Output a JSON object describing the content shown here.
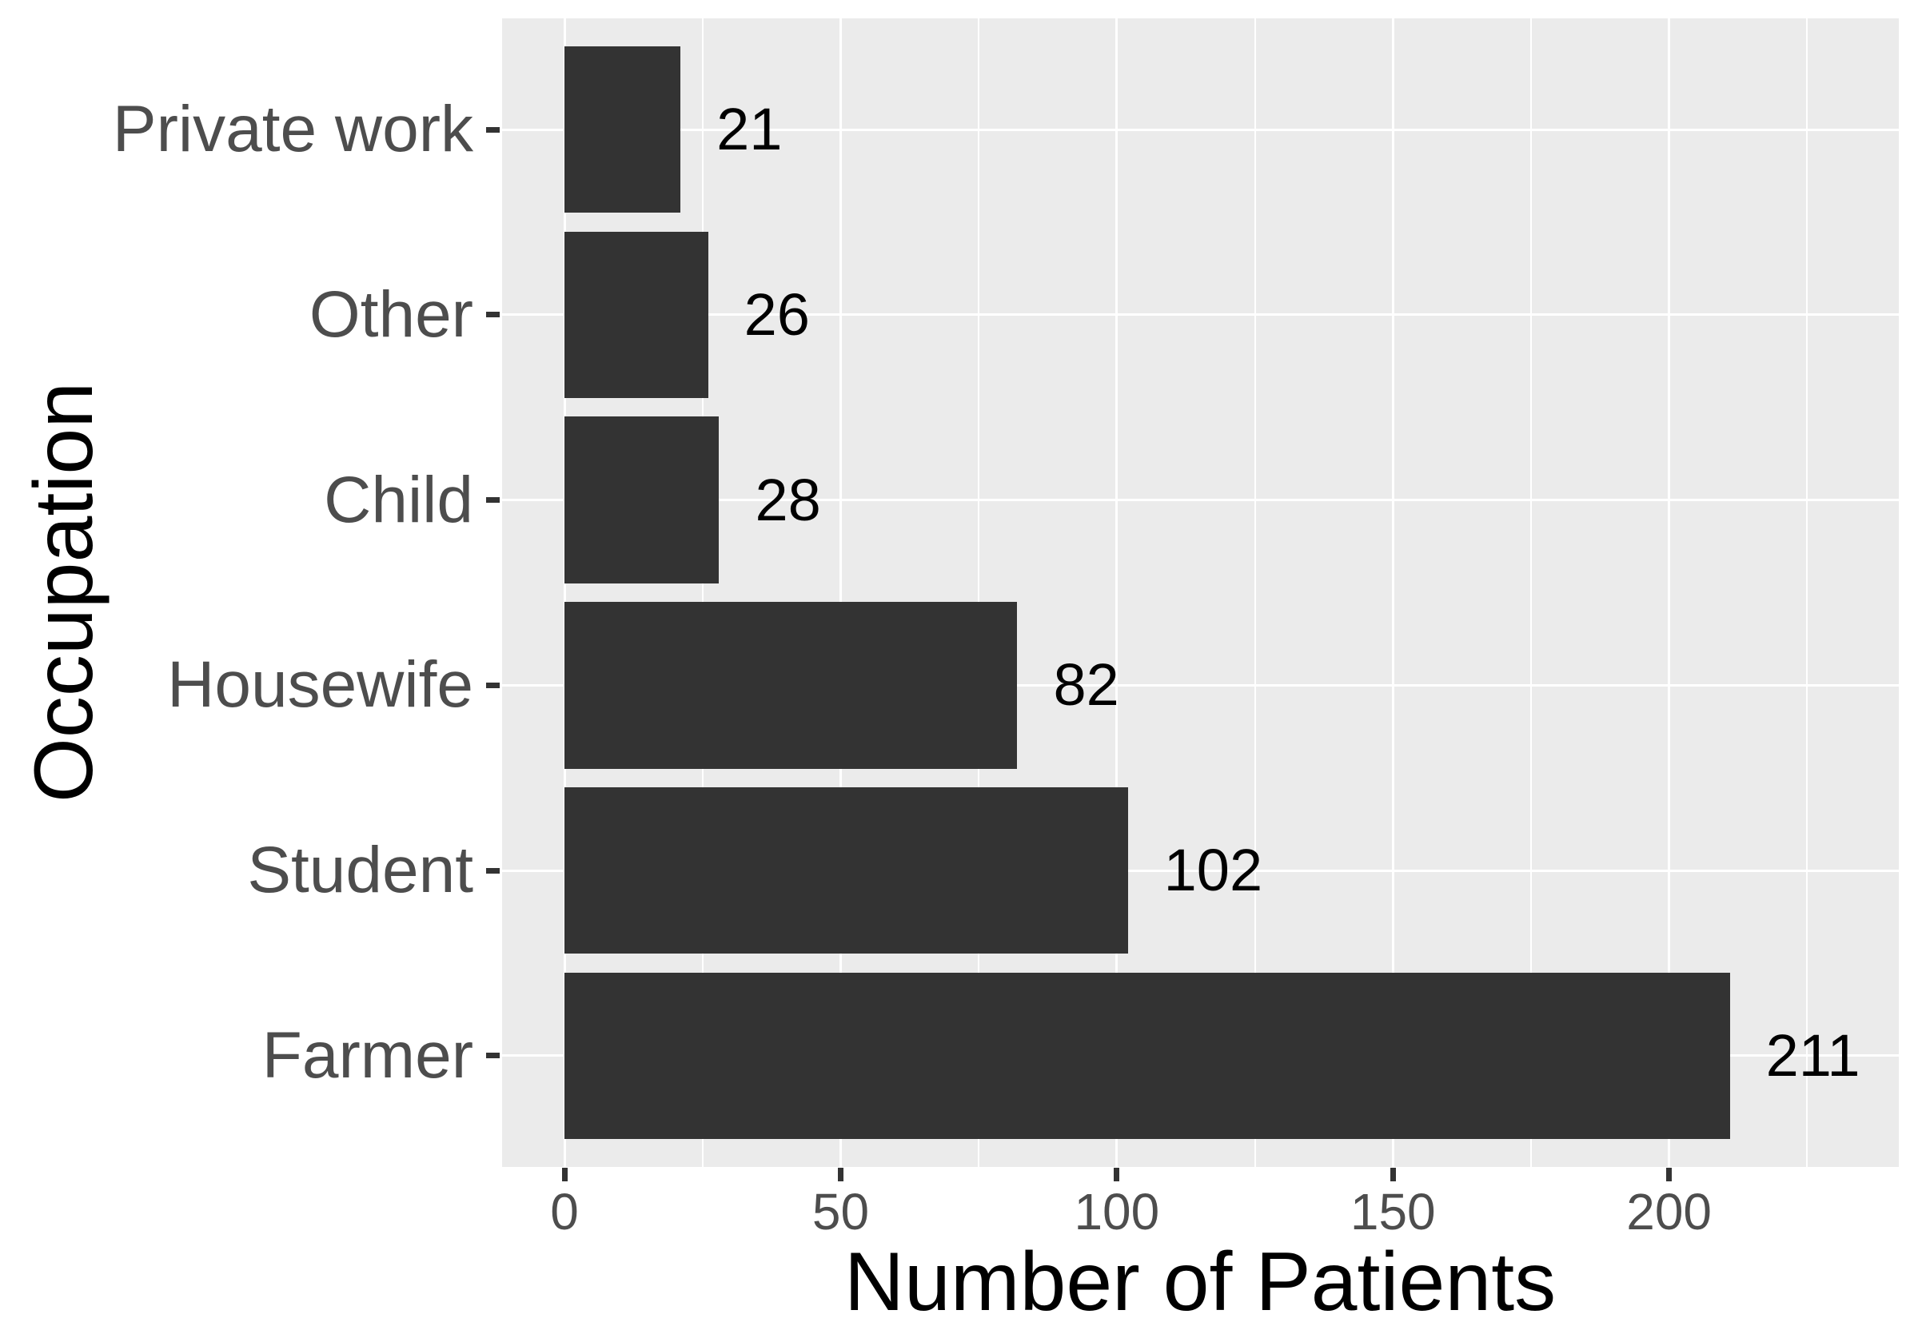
{
  "chart_data": {
    "type": "bar",
    "orientation": "horizontal",
    "title": "",
    "xlabel": "Number of Patients",
    "ylabel": "Occupation",
    "categories_top_to_bottom": [
      "Private work",
      "Other",
      "Child",
      "Housewife",
      "Student",
      "Farmer"
    ],
    "series": [
      {
        "name": "Number of Patients",
        "values": [
          21,
          26,
          28,
          82,
          102,
          211
        ]
      }
    ],
    "bar_value_labels": [
      "21",
      "26",
      "28",
      "82",
      "102",
      "211"
    ],
    "x_major_ticks": [
      0,
      50,
      100,
      150,
      200
    ],
    "x_tick_labels": [
      "0",
      "50",
      "100",
      "150",
      "200"
    ],
    "x_minor_ticks": [
      25,
      75,
      125,
      175,
      225
    ],
    "xlim": [
      -11.3,
      241.6
    ],
    "y_expansion_band_units": 0.6,
    "bar_band_fraction": 0.9,
    "grid": true,
    "legend": false,
    "colors": {
      "figure_background": "#FFFFFF",
      "panel_background": "#EBEBEB",
      "gridline": "#FFFFFF",
      "bar_fill": "#333333",
      "axis_text": "#4D4D4D",
      "axis_title_text": "#000000",
      "bar_value_text": "#000000",
      "tick_mark": "#333333"
    }
  }
}
